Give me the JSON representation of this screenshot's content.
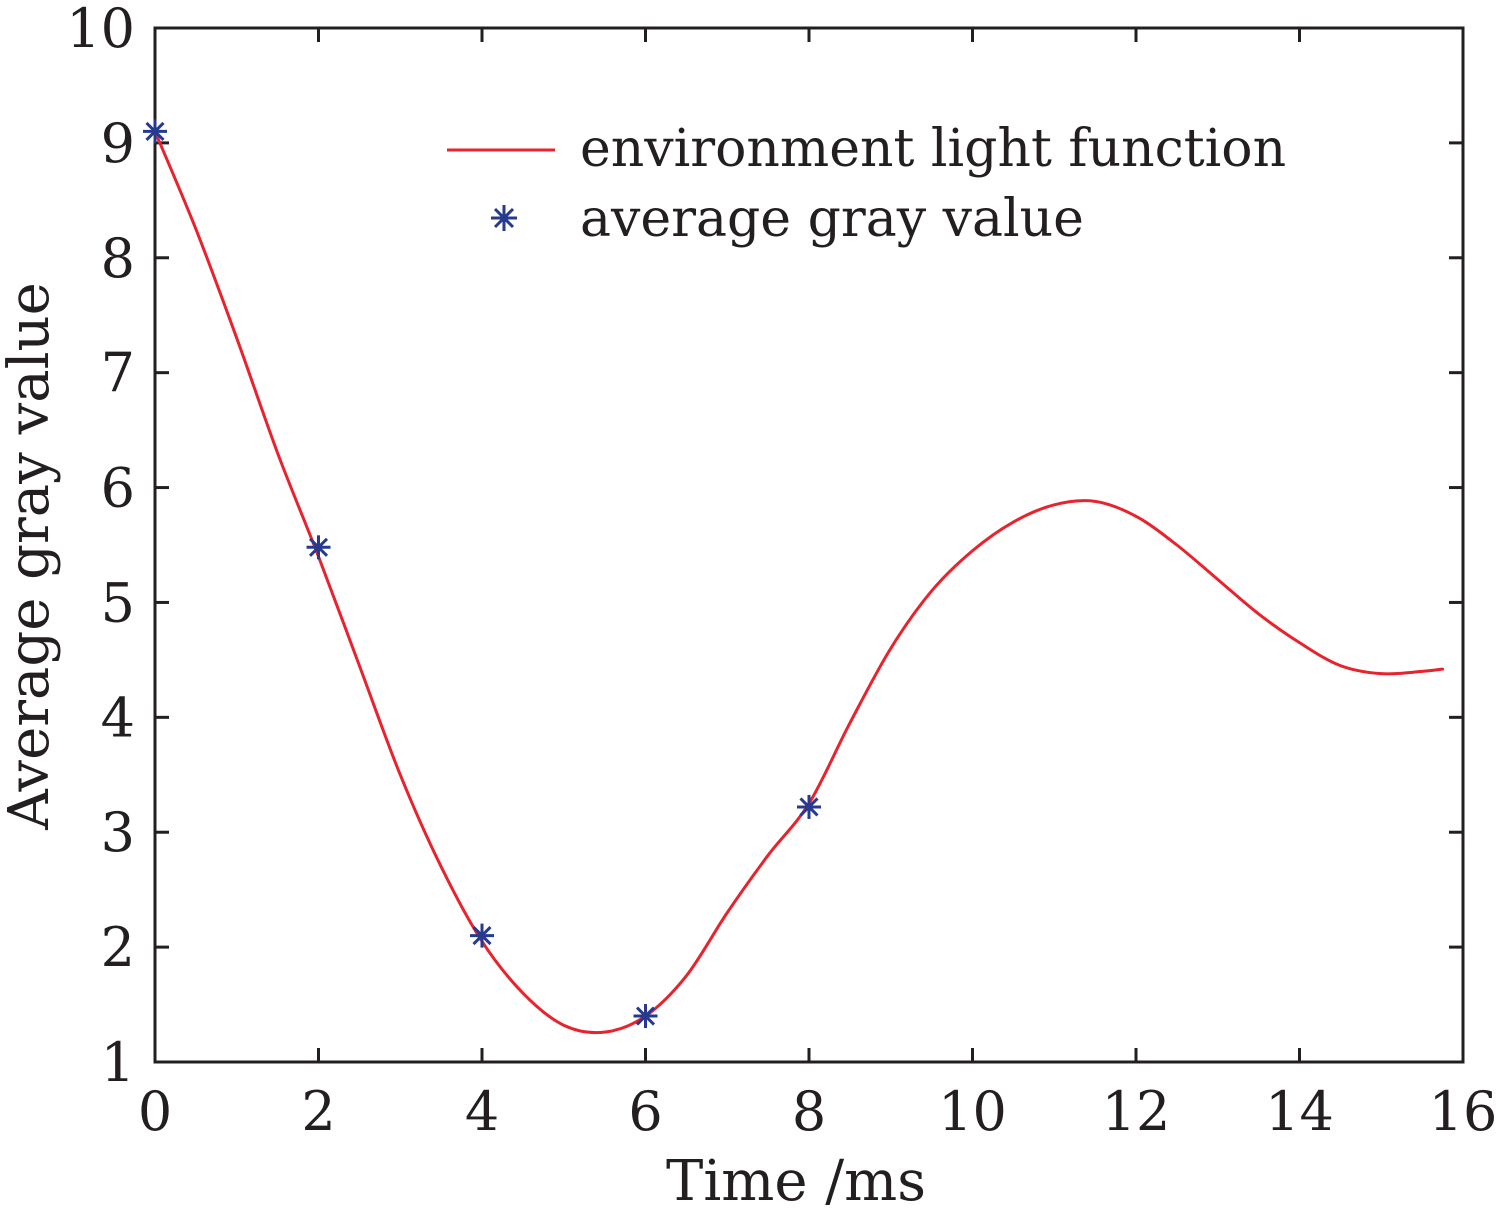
{
  "chart_data": {
    "type": "line",
    "title": "",
    "xlabel": "Time /ms",
    "ylabel": "Average gray value",
    "xlim": [
      0,
      16
    ],
    "ylim": [
      1,
      10
    ],
    "xticks": [
      0,
      2,
      4,
      6,
      8,
      10,
      12,
      14,
      16
    ],
    "yticks": [
      1,
      2,
      3,
      4,
      5,
      6,
      7,
      8,
      9,
      10
    ],
    "xtick_labels": [
      "0",
      "2",
      "4",
      "6",
      "8",
      "10",
      "12",
      "14",
      "16"
    ],
    "ytick_labels": [
      "1",
      "2",
      "3",
      "4",
      "5",
      "6",
      "7",
      "8",
      "9",
      "10"
    ],
    "grid": false,
    "legend_position": "top-right",
    "series": [
      {
        "name": "environment light function",
        "kind": "line",
        "color": "#e8232e",
        "x": [
          0,
          0.5,
          1,
          1.5,
          2,
          2.5,
          3,
          3.5,
          4,
          4.5,
          5,
          5.5,
          6,
          6.5,
          7,
          7.5,
          8,
          8.5,
          9,
          9.5,
          10,
          10.5,
          11,
          11.5,
          12,
          12.5,
          13,
          13.5,
          14,
          14.5,
          15,
          15.5,
          15.75
        ],
        "values": [
          9.1,
          8.25,
          7.3,
          6.3,
          5.4,
          4.45,
          3.5,
          2.7,
          2.05,
          1.6,
          1.32,
          1.26,
          1.4,
          1.75,
          2.3,
          2.8,
          3.25,
          3.95,
          4.6,
          5.1,
          5.45,
          5.7,
          5.85,
          5.88,
          5.75,
          5.5,
          5.2,
          4.9,
          4.65,
          4.45,
          4.38,
          4.4,
          4.42
        ]
      },
      {
        "name": "average gray value",
        "kind": "scatter",
        "marker": "asterisk",
        "color": "#263a8f",
        "x": [
          0,
          2,
          4,
          6,
          8
        ],
        "values": [
          9.1,
          5.48,
          2.1,
          1.4,
          3.22
        ]
      }
    ]
  }
}
